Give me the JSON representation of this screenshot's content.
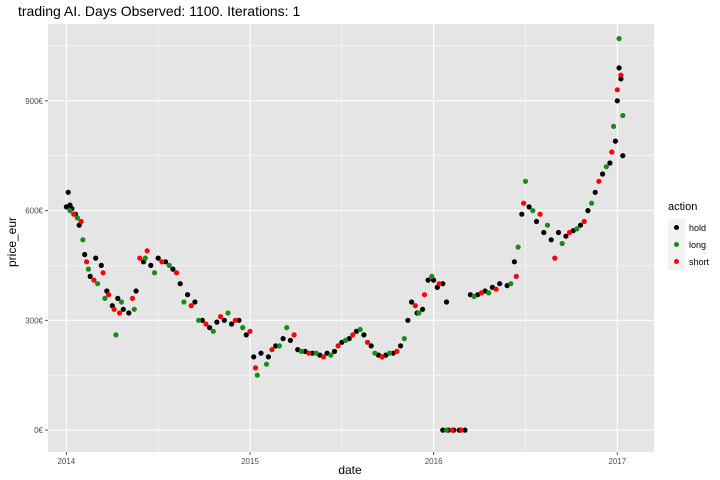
{
  "title": "trading AI. Days Observed: 1100. Iterations:  1",
  "colors": {
    "hold": "#000000",
    "long": "#1a8a1a",
    "short": "#ff0000",
    "panel": "#e5e5e5",
    "grid": "#ffffff"
  },
  "chart_data": {
    "type": "scatter",
    "xlabel": "date",
    "ylabel": "price_eur",
    "x_ticks": [
      "2014",
      "2015",
      "2016",
      "2017"
    ],
    "y_ticks": [
      "0€",
      "300€",
      "600€",
      "900€"
    ],
    "y_tick_values": [
      0,
      300,
      600,
      900
    ],
    "xlim": [
      2013.9,
      2017.2
    ],
    "ylim": [
      -60,
      1110
    ],
    "grid": true,
    "legend": {
      "title": "action",
      "position": "right",
      "entries": [
        "hold",
        "long",
        "short"
      ]
    },
    "series": [
      {
        "name": "hold",
        "points": [
          [
            2014.0,
            610
          ],
          [
            2014.01,
            650
          ],
          [
            2014.02,
            615
          ],
          [
            2014.03,
            605
          ],
          [
            2014.05,
            590
          ],
          [
            2014.07,
            560
          ],
          [
            2014.1,
            480
          ],
          [
            2014.13,
            420
          ],
          [
            2014.16,
            470
          ],
          [
            2014.19,
            450
          ],
          [
            2014.22,
            380
          ],
          [
            2014.25,
            340
          ],
          [
            2014.28,
            360
          ],
          [
            2014.31,
            330
          ],
          [
            2014.34,
            320
          ],
          [
            2014.38,
            380
          ],
          [
            2014.42,
            460
          ],
          [
            2014.46,
            450
          ],
          [
            2014.5,
            470
          ],
          [
            2014.54,
            460
          ],
          [
            2014.58,
            440
          ],
          [
            2014.62,
            400
          ],
          [
            2014.66,
            370
          ],
          [
            2014.7,
            350
          ],
          [
            2014.74,
            300
          ],
          [
            2014.78,
            280
          ],
          [
            2014.82,
            295
          ],
          [
            2014.86,
            300
          ],
          [
            2014.9,
            290
          ],
          [
            2014.94,
            300
          ],
          [
            2014.98,
            260
          ],
          [
            2015.02,
            200
          ],
          [
            2015.06,
            210
          ],
          [
            2015.1,
            200
          ],
          [
            2015.14,
            230
          ],
          [
            2015.18,
            250
          ],
          [
            2015.22,
            245
          ],
          [
            2015.26,
            220
          ],
          [
            2015.3,
            215
          ],
          [
            2015.34,
            210
          ],
          [
            2015.38,
            205
          ],
          [
            2015.42,
            210
          ],
          [
            2015.46,
            215
          ],
          [
            2015.5,
            240
          ],
          [
            2015.54,
            250
          ],
          [
            2015.58,
            270
          ],
          [
            2015.62,
            260
          ],
          [
            2015.66,
            230
          ],
          [
            2015.7,
            205
          ],
          [
            2015.74,
            205
          ],
          [
            2015.78,
            210
          ],
          [
            2015.82,
            230
          ],
          [
            2015.86,
            300
          ],
          [
            2015.88,
            350
          ],
          [
            2015.91,
            320
          ],
          [
            2015.94,
            330
          ],
          [
            2015.97,
            410
          ],
          [
            2016.0,
            410
          ],
          [
            2016.02,
            390
          ],
          [
            2016.05,
            400
          ],
          [
            2016.07,
            350
          ],
          [
            2016.05,
            0
          ],
          [
            2016.08,
            0
          ],
          [
            2016.11,
            0
          ],
          [
            2016.14,
            0
          ],
          [
            2016.17,
            0
          ],
          [
            2016.2,
            370
          ],
          [
            2016.24,
            370
          ],
          [
            2016.28,
            380
          ],
          [
            2016.32,
            390
          ],
          [
            2016.36,
            400
          ],
          [
            2016.4,
            395
          ],
          [
            2016.44,
            460
          ],
          [
            2016.48,
            590
          ],
          [
            2016.52,
            610
          ],
          [
            2016.56,
            570
          ],
          [
            2016.6,
            540
          ],
          [
            2016.64,
            520
          ],
          [
            2016.68,
            540
          ],
          [
            2016.72,
            530
          ],
          [
            2016.76,
            545
          ],
          [
            2016.8,
            560
          ],
          [
            2016.84,
            600
          ],
          [
            2016.88,
            650
          ],
          [
            2016.92,
            700
          ],
          [
            2016.96,
            730
          ],
          [
            2016.99,
            790
          ],
          [
            2017.0,
            900
          ],
          [
            2017.01,
            990
          ],
          [
            2017.02,
            960
          ],
          [
            2017.03,
            750
          ]
        ]
      },
      {
        "name": "long",
        "points": [
          [
            2014.02,
            600
          ],
          [
            2014.06,
            580
          ],
          [
            2014.09,
            520
          ],
          [
            2014.12,
            440
          ],
          [
            2014.17,
            400
          ],
          [
            2014.21,
            360
          ],
          [
            2014.27,
            260
          ],
          [
            2014.3,
            350
          ],
          [
            2014.37,
            330
          ],
          [
            2014.43,
            470
          ],
          [
            2014.48,
            430
          ],
          [
            2014.56,
            450
          ],
          [
            2014.64,
            350
          ],
          [
            2014.72,
            300
          ],
          [
            2014.8,
            270
          ],
          [
            2014.88,
            320
          ],
          [
            2014.96,
            280
          ],
          [
            2015.04,
            150
          ],
          [
            2015.09,
            180
          ],
          [
            2015.16,
            230
          ],
          [
            2015.2,
            280
          ],
          [
            2015.28,
            215
          ],
          [
            2015.36,
            210
          ],
          [
            2015.44,
            205
          ],
          [
            2015.52,
            245
          ],
          [
            2015.6,
            275
          ],
          [
            2015.68,
            210
          ],
          [
            2015.76,
            210
          ],
          [
            2015.84,
            250
          ],
          [
            2015.92,
            320
          ],
          [
            2015.99,
            420
          ],
          [
            2016.07,
            0
          ],
          [
            2016.22,
            365
          ],
          [
            2016.3,
            375
          ],
          [
            2016.42,
            400
          ],
          [
            2016.46,
            500
          ],
          [
            2016.5,
            680
          ],
          [
            2016.54,
            600
          ],
          [
            2016.62,
            560
          ],
          [
            2016.7,
            510
          ],
          [
            2016.78,
            550
          ],
          [
            2016.86,
            620
          ],
          [
            2016.94,
            720
          ],
          [
            2016.98,
            830
          ],
          [
            2017.01,
            1070
          ],
          [
            2017.03,
            860
          ]
        ]
      },
      {
        "name": "short",
        "points": [
          [
            2014.04,
            590
          ],
          [
            2014.08,
            570
          ],
          [
            2014.11,
            460
          ],
          [
            2014.15,
            410
          ],
          [
            2014.2,
            430
          ],
          [
            2014.23,
            370
          ],
          [
            2014.26,
            330
          ],
          [
            2014.29,
            320
          ],
          [
            2014.36,
            360
          ],
          [
            2014.4,
            470
          ],
          [
            2014.44,
            490
          ],
          [
            2014.52,
            460
          ],
          [
            2014.6,
            430
          ],
          [
            2014.68,
            340
          ],
          [
            2014.76,
            290
          ],
          [
            2014.84,
            310
          ],
          [
            2014.92,
            300
          ],
          [
            2015.0,
            270
          ],
          [
            2015.03,
            170
          ],
          [
            2015.12,
            220
          ],
          [
            2015.24,
            260
          ],
          [
            2015.32,
            210
          ],
          [
            2015.4,
            200
          ],
          [
            2015.48,
            230
          ],
          [
            2015.56,
            260
          ],
          [
            2015.64,
            240
          ],
          [
            2015.72,
            200
          ],
          [
            2015.8,
            215
          ],
          [
            2015.9,
            340
          ],
          [
            2015.95,
            370
          ],
          [
            2016.03,
            400
          ],
          [
            2016.1,
            0
          ],
          [
            2016.15,
            0
          ],
          [
            2016.26,
            375
          ],
          [
            2016.34,
            385
          ],
          [
            2016.45,
            420
          ],
          [
            2016.49,
            620
          ],
          [
            2016.58,
            590
          ],
          [
            2016.66,
            470
          ],
          [
            2016.74,
            540
          ],
          [
            2016.82,
            570
          ],
          [
            2016.9,
            680
          ],
          [
            2016.97,
            760
          ],
          [
            2017.0,
            930
          ],
          [
            2017.02,
            970
          ]
        ]
      }
    ]
  }
}
